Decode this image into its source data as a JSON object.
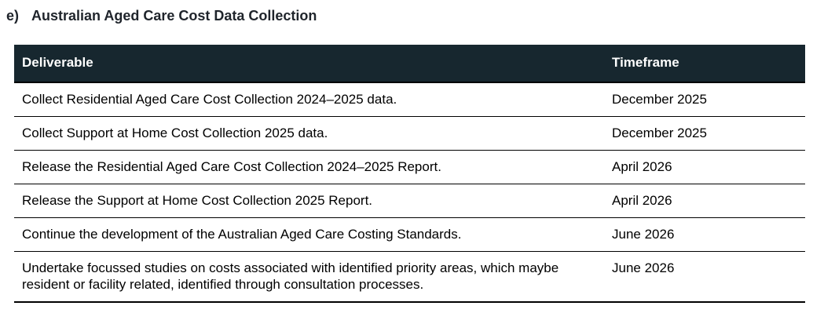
{
  "heading": {
    "marker": "e)",
    "title": "Australian Aged Care Cost Data Collection"
  },
  "table": {
    "columns": {
      "deliverable": "Deliverable",
      "timeframe": "Timeframe"
    },
    "rows": [
      {
        "deliverable": "Collect Residential Aged Care Cost Collection 2024–2025 data.",
        "timeframe": "December 2025"
      },
      {
        "deliverable": "Collect Support at Home Cost Collection 2025 data.",
        "timeframe": "December 2025"
      },
      {
        "deliverable": "Release the Residential Aged Care Cost Collection 2024–2025 Report.",
        "timeframe": "April 2026"
      },
      {
        "deliverable": "Release the Support at Home Cost Collection 2025 Report.",
        "timeframe": "April 2026"
      },
      {
        "deliverable": "Continue the development of the Australian Aged Care Costing Standards.",
        "timeframe": "June 2026"
      },
      {
        "deliverable": "Undertake focussed studies on costs associated with identified priority areas, which maybe resident or facility related, identified through consultation processes.",
        "timeframe": "June 2026"
      }
    ]
  },
  "colors": {
    "page_bg": "#ffffff",
    "header_bg": "#17272f",
    "header_text": "#ffffff",
    "body_text": "#000000",
    "heading_text": "#1f242b",
    "border": "#000000"
  }
}
